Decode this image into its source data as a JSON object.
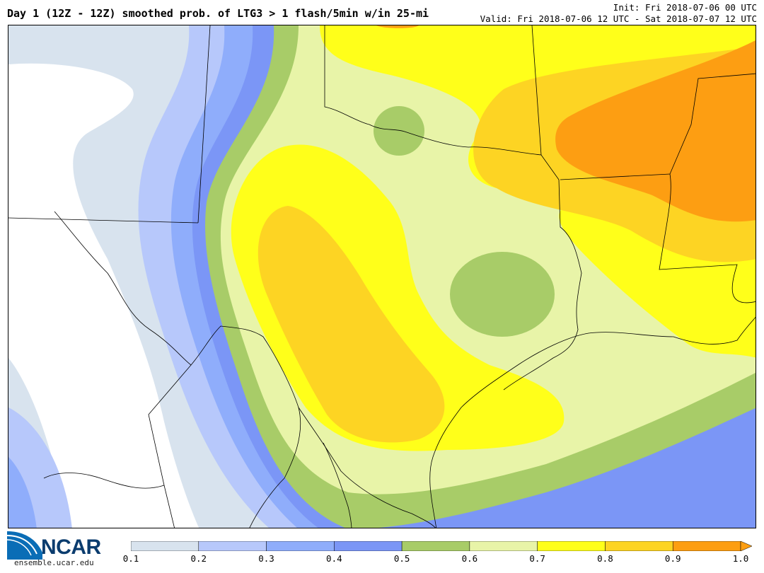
{
  "header": {
    "title": "Day 1 (12Z - 12Z) smoothed prob. of LTG3 > 1 flash/5min w/in 25-mi",
    "init": "Init: Fri 2018-07-06 00 UTC",
    "valid": "Valid: Fri 2018-07-06 12 UTC - Sat 2018-07-07 12 UTC"
  },
  "branding": {
    "logo_text": "NCAR",
    "url": "ensemble.ucar.edu",
    "logo_colors": [
      "#0a6db6",
      "#0b3c6e"
    ]
  },
  "colorbar": {
    "ticks": [
      "0.1",
      "0.2",
      "0.3",
      "0.4",
      "0.5",
      "0.6",
      "0.7",
      "0.8",
      "0.9",
      "1.0"
    ],
    "bins": [
      {
        "min": 0.1,
        "max": 0.2,
        "color": "#d8e3ee"
      },
      {
        "min": 0.2,
        "max": 0.3,
        "color": "#b7c8fb"
      },
      {
        "min": 0.3,
        "max": 0.4,
        "color": "#8fadfb"
      },
      {
        "min": 0.4,
        "max": 0.5,
        "color": "#7b96f6"
      },
      {
        "min": 0.5,
        "max": 0.6,
        "color": "#a8cc68"
      },
      {
        "min": 0.6,
        "max": 0.7,
        "color": "#e8f4a8"
      },
      {
        "min": 0.7,
        "max": 0.8,
        "color": "#ffff1a"
      },
      {
        "min": 0.8,
        "max": 0.9,
        "color": "#fdd423"
      },
      {
        "min": 0.9,
        "max": 1.0,
        "color": "#fd9e12"
      }
    ],
    "extend": "max"
  }
}
